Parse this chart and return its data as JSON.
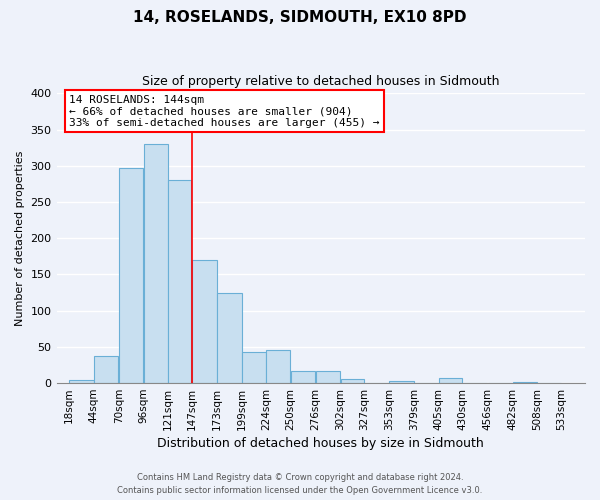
{
  "title": "14, ROSELANDS, SIDMOUTH, EX10 8PD",
  "subtitle": "Size of property relative to detached houses in Sidmouth",
  "xlabel": "Distribution of detached houses by size in Sidmouth",
  "ylabel": "Number of detached properties",
  "bar_left_edges": [
    18,
    44,
    70,
    96,
    121,
    147,
    173,
    199,
    224,
    250,
    276,
    302,
    327,
    353,
    379,
    405,
    430,
    456,
    482,
    508
  ],
  "bar_heights": [
    4,
    37,
    297,
    330,
    280,
    170,
    124,
    43,
    46,
    16,
    17,
    5,
    0,
    3,
    0,
    7,
    0,
    0,
    2,
    0
  ],
  "bar_widths": [
    26,
    26,
    26,
    26,
    25,
    26,
    26,
    25,
    26,
    26,
    26,
    25,
    26,
    26,
    26,
    25,
    26,
    26,
    26,
    25
  ],
  "bar_color": "#c8dff0",
  "bar_edgecolor": "#6aafd6",
  "x_tick_labels": [
    "18sqm",
    "44sqm",
    "70sqm",
    "96sqm",
    "121sqm",
    "147sqm",
    "173sqm",
    "199sqm",
    "224sqm",
    "250sqm",
    "276sqm",
    "302sqm",
    "327sqm",
    "353sqm",
    "379sqm",
    "405sqm",
    "430sqm",
    "456sqm",
    "482sqm",
    "508sqm",
    "533sqm"
  ],
  "x_tick_positions": [
    18,
    44,
    70,
    96,
    121,
    147,
    173,
    199,
    224,
    250,
    276,
    302,
    327,
    353,
    379,
    405,
    430,
    456,
    482,
    508,
    533
  ],
  "ylim": [
    0,
    400
  ],
  "yticks": [
    0,
    50,
    100,
    150,
    200,
    250,
    300,
    350,
    400
  ],
  "xlim_left": 5,
  "xlim_right": 558,
  "property_line_x": 147,
  "property_label": "14 ROSELANDS: 144sqm",
  "annotation_line1": "← 66% of detached houses are smaller (904)",
  "annotation_line2": "33% of semi-detached houses are larger (455) →",
  "footer1": "Contains HM Land Registry data © Crown copyright and database right 2024.",
  "footer2": "Contains public sector information licensed under the Open Government Licence v3.0.",
  "background_color": "#eef2fa",
  "grid_color": "#ffffff",
  "title_fontsize": 11,
  "subtitle_fontsize": 9,
  "xlabel_fontsize": 9,
  "ylabel_fontsize": 8,
  "tick_fontsize": 7.5,
  "ytick_fontsize": 8,
  "footer_fontsize": 6,
  "annot_fontsize": 8
}
